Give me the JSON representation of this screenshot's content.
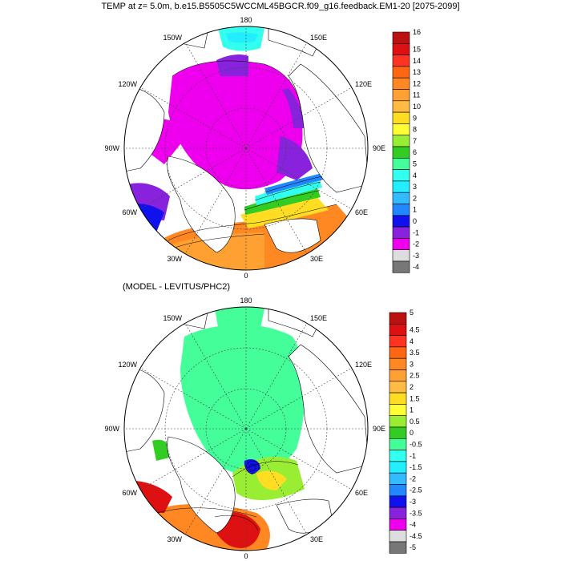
{
  "title": "TEMP at z=   5.0m, b.e15.B5505C5WCCML45BGCR.f09_g16.feedback.EM1-20 [2075-2099]",
  "subtitle": "(MODEL - LEVITUS/PHC2)",
  "lon_labels": [
    "180",
    "150E",
    "120E",
    "90E",
    "60E",
    "30E",
    "0",
    "30W",
    "60W",
    "90W",
    "120W",
    "150W"
  ],
  "top_colorbar": {
    "labels": [
      "16",
      "15",
      "14",
      "13",
      "12",
      "11",
      "10",
      "9",
      "8",
      "7",
      "6",
      "5",
      "4",
      "3",
      "2",
      "1",
      "0",
      "-1",
      "-2",
      "-3",
      "-4"
    ],
    "colors": [
      "#bb1111",
      "#dd1111",
      "#ff3322",
      "#ff6611",
      "#ff8822",
      "#ffa033",
      "#ffbb44",
      "#ffdd22",
      "#ffff33",
      "#99ee33",
      "#33cc22",
      "#44ff99",
      "#33ffee",
      "#22eeff",
      "#33bbff",
      "#2288ff",
      "#1111ee",
      "#8822dd",
      "#ee00ee",
      "#dddddd",
      "#777777"
    ]
  },
  "bottom_colorbar": {
    "labels": [
      "5",
      "4.5",
      "4",
      "3.5",
      "3",
      "2.5",
      "2",
      "1.5",
      "1",
      "0.5",
      "0",
      "-0.5",
      "-1",
      "-1.5",
      "-2",
      "-2.5",
      "-3",
      "-3.5",
      "-4",
      "-4.5",
      "-5"
    ],
    "colors": [
      "#bb1111",
      "#dd1111",
      "#ff3322",
      "#ff6611",
      "#ff8822",
      "#ffa033",
      "#ffbb44",
      "#ffdd22",
      "#ffff33",
      "#99ee33",
      "#33cc22",
      "#44ff99",
      "#33ffee",
      "#22eeff",
      "#33bbff",
      "#2288ff",
      "#1111ee",
      "#8822dd",
      "#ee00ee",
      "#dddddd",
      "#777777"
    ]
  },
  "colors": {
    "land": "#ffffff",
    "coast": "#000000",
    "grid": "#444444"
  }
}
